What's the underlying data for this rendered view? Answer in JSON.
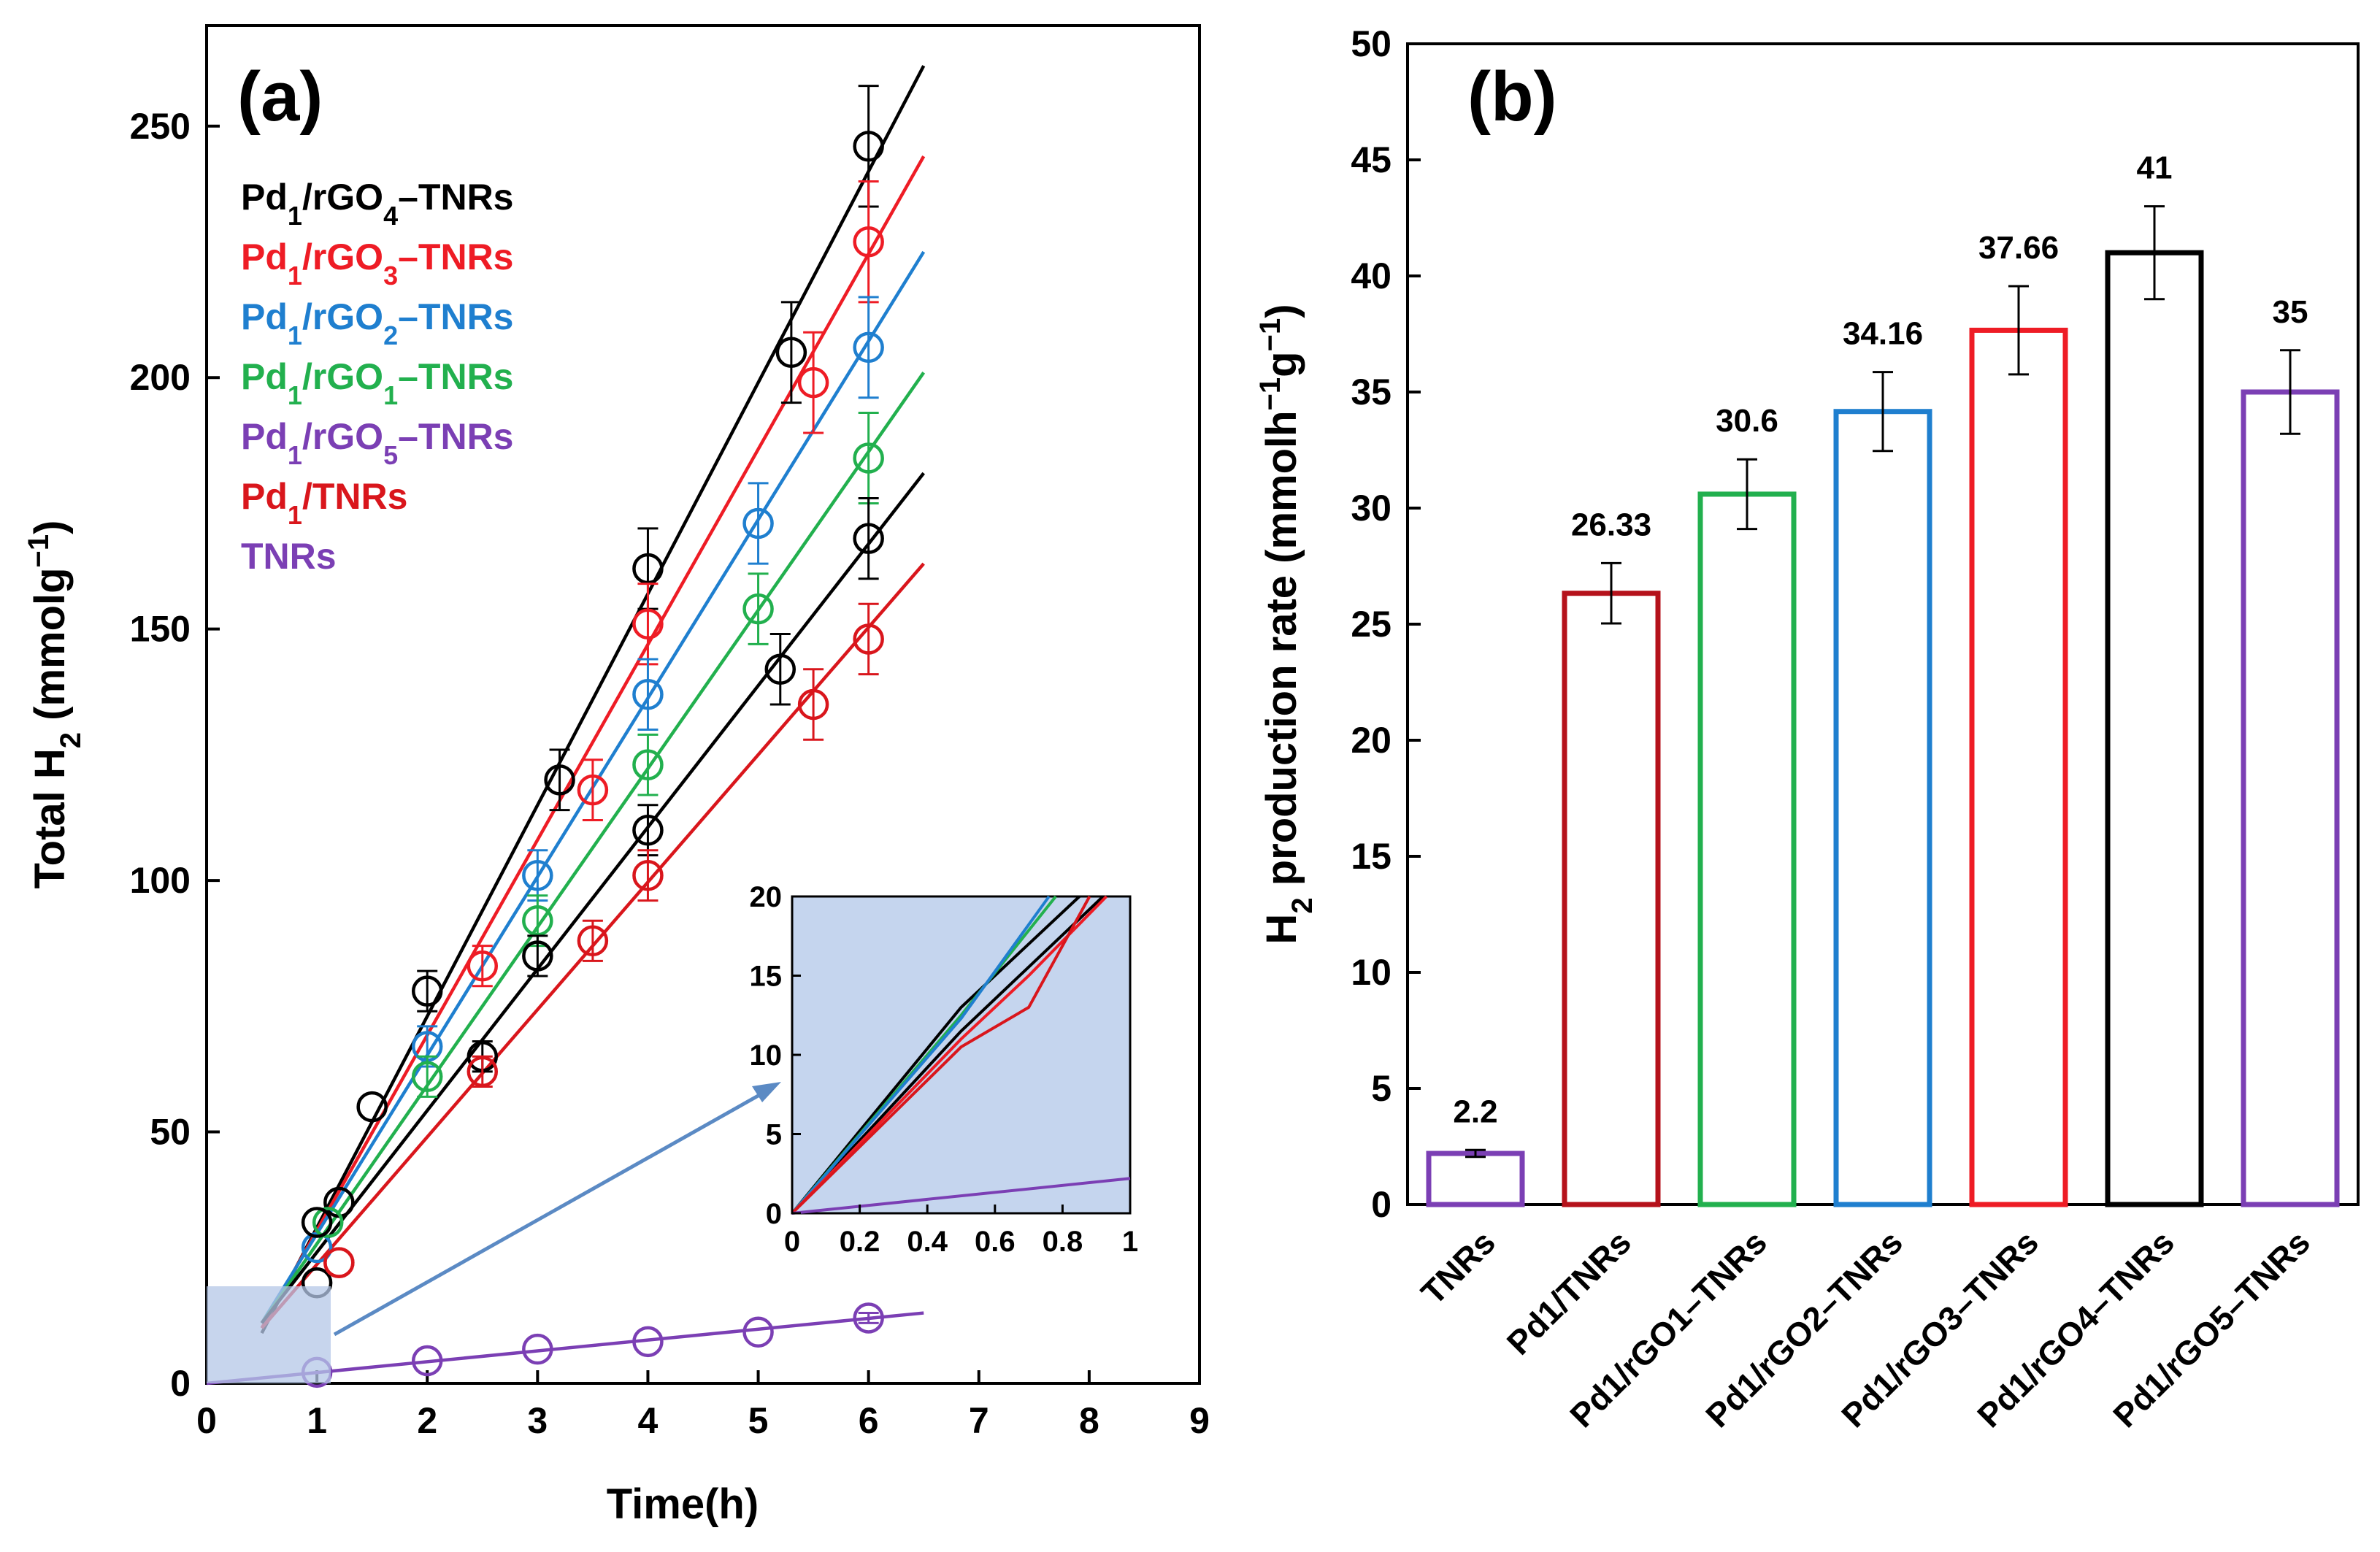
{
  "chart_data": [
    {
      "id": "a",
      "type": "scatter",
      "panel_label": "(a)",
      "xlabel": "Time(h)",
      "ylabel": "Total H2 (mmolg-1)",
      "xlim": [
        0,
        9
      ],
      "ylim": [
        0,
        270
      ],
      "xticks": [
        0,
        1,
        2,
        3,
        4,
        5,
        6,
        7,
        8,
        9
      ],
      "yticks": [
        0,
        50,
        100,
        150,
        200,
        250
      ],
      "legend": [
        {
          "label": "Pd1/rGO4–TNRs",
          "color": "#000000"
        },
        {
          "label": "Pd1/rGO3–TNRs",
          "color": "#ee1c25"
        },
        {
          "label": "Pd1/rGO2–TNRs",
          "color": "#1f7fcf"
        },
        {
          "label": "Pd1/rGO1–TNRs",
          "color": "#22b04e"
        },
        {
          "label": "Pd1/rGO5–TNRs",
          "color": "#7b3fb4"
        },
        {
          "label": "Pd1/TNRs",
          "color": "#d9161c"
        },
        {
          "label": "TNRs",
          "color": "#7b3fb4"
        }
      ],
      "series": [
        {
          "name": "Pd1/rGO4-TNRs",
          "color": "#000000",
          "x": [
            1.0,
            1.2,
            1.5,
            2.0,
            3.2,
            4.0,
            5.3,
            6.0
          ],
          "y": [
            20,
            36,
            55,
            78,
            120,
            162,
            205,
            246
          ],
          "err": [
            0,
            0,
            0,
            4,
            6,
            8,
            10,
            12
          ],
          "fit": [
            [
              0.5,
              10
            ],
            [
              6.5,
              262
            ]
          ]
        },
        {
          "name": "Pd1/rGO3-TNRs",
          "color": "#ee1c25",
          "x": [
            1.2,
            2.5,
            3.5,
            4.0,
            5.5,
            6.0
          ],
          "y": [
            24,
            83,
            118,
            151,
            199,
            227
          ],
          "err": [
            0,
            4,
            6,
            8,
            10,
            12
          ],
          "fit": [
            [
              0.5,
              11
            ],
            [
              6.5,
              244
            ]
          ]
        },
        {
          "name": "Pd1/rGO2-TNRs",
          "color": "#1f7fcf",
          "x": [
            1.0,
            2.0,
            3.0,
            4.0,
            5.0,
            6.0
          ],
          "y": [
            27,
            67,
            101,
            137,
            171,
            206
          ],
          "err": [
            0,
            4,
            5,
            7,
            8,
            10
          ],
          "fit": [
            [
              0.5,
              12
            ],
            [
              6.5,
              225
            ]
          ]
        },
        {
          "name": "Pd1/rGO1-TNRs",
          "color": "#22b04e",
          "x": [
            1.1,
            2.0,
            3.0,
            4.0,
            5.0,
            6.0
          ],
          "y": [
            32,
            61,
            92,
            123,
            154,
            184
          ],
          "err": [
            0,
            4,
            5,
            6,
            7,
            9
          ],
          "fit": [
            [
              0.5,
              12
            ],
            [
              6.5,
              201
            ]
          ]
        },
        {
          "name": "Pd1/rGO5-TNRs",
          "color": "#000000",
          "x": [
            1.0,
            2.5,
            3.0,
            4.0,
            5.2,
            6.0
          ],
          "y": [
            32,
            65,
            85,
            110,
            142,
            168
          ],
          "err": [
            0,
            3,
            4,
            5,
            7,
            8
          ],
          "fit": [
            [
              0.5,
              12
            ],
            [
              6.5,
              181
            ]
          ]
        },
        {
          "name": "Pd1/TNRs",
          "color": "#d9161c",
          "x": [
            1.2,
            2.5,
            3.5,
            4.0,
            5.5,
            6.0
          ],
          "y": [
            24,
            62,
            88,
            101,
            135,
            148
          ],
          "err": [
            0,
            3,
            4,
            5,
            7,
            7
          ],
          "fit": [
            [
              0.5,
              11
            ],
            [
              6.5,
              163
            ]
          ]
        },
        {
          "name": "TNRs",
          "color": "#7b3fb4",
          "x": [
            1.0,
            2.0,
            3.0,
            4.0,
            5.0,
            6.0
          ],
          "y": [
            2.2,
            4.5,
            6.8,
            8.3,
            10.2,
            13
          ],
          "err": [
            0,
            0,
            0,
            0,
            0,
            1
          ],
          "fit": [
            [
              0,
              0
            ],
            [
              6.5,
              14
            ]
          ]
        }
      ],
      "inset": {
        "xlim": [
          0,
          1
        ],
        "ylim": [
          0,
          20
        ],
        "xticks": [
          0,
          0.2,
          0.4,
          0.6,
          0.8,
          1
        ],
        "yticks": [
          0,
          5,
          10,
          15,
          20
        ],
        "lines": [
          {
            "color": "#000000",
            "pts": [
              [
                0,
                0
              ],
              [
                0.5,
                13
              ],
              [
                0.85,
                20
              ]
            ]
          },
          {
            "color": "#000000",
            "pts": [
              [
                0,
                0
              ],
              [
                0.5,
                11.5
              ],
              [
                0.92,
                20
              ]
            ]
          },
          {
            "color": "#22b04e",
            "pts": [
              [
                0,
                0
              ],
              [
                0.5,
                12.5
              ],
              [
                0.78,
                20
              ]
            ]
          },
          {
            "color": "#1f7fcf",
            "pts": [
              [
                0,
                0
              ],
              [
                0.5,
                12.3
              ],
              [
                0.76,
                20
              ]
            ]
          },
          {
            "color": "#ee1c25",
            "pts": [
              [
                0,
                0
              ],
              [
                0.5,
                11
              ],
              [
                0.7,
                15
              ],
              [
                0.93,
                20
              ]
            ]
          },
          {
            "color": "#d9161c",
            "pts": [
              [
                0,
                0
              ],
              [
                0.5,
                10.5
              ],
              [
                0.7,
                13
              ],
              [
                0.88,
                20
              ]
            ]
          },
          {
            "color": "#7b3fb4",
            "pts": [
              [
                0,
                0
              ],
              [
                1,
                2.2
              ]
            ]
          }
        ]
      }
    },
    {
      "id": "b",
      "type": "bar",
      "panel_label": "(b)",
      "ylabel": "H2 production rate (mmolh-1g-1)",
      "ylim": [
        0,
        50
      ],
      "yticks": [
        0,
        5,
        10,
        15,
        20,
        25,
        30,
        35,
        40,
        45,
        50
      ],
      "categories": [
        "TNRs",
        "Pd1/TNRs",
        "Pd1/rGO1–TNRs",
        "Pd1/rGO2–TNRs",
        "Pd1/rGO3–TNRs",
        "Pd1/rGO4–TNRs",
        "Pd1/rGO5–TNRs"
      ],
      "values": [
        2.2,
        26.33,
        30.6,
        34.16,
        37.66,
        41,
        35
      ],
      "value_labels": [
        "2.2",
        "26.33",
        "30.6",
        "34.16",
        "37.66",
        "41",
        "35"
      ],
      "errors": [
        0.15,
        1.3,
        1.5,
        1.7,
        1.9,
        2.0,
        1.8
      ],
      "colors": [
        "#7b3fb4",
        "#b5121b",
        "#22b04e",
        "#1f7fcf",
        "#ee1c25",
        "#000000",
        "#7b3fb4"
      ]
    }
  ]
}
